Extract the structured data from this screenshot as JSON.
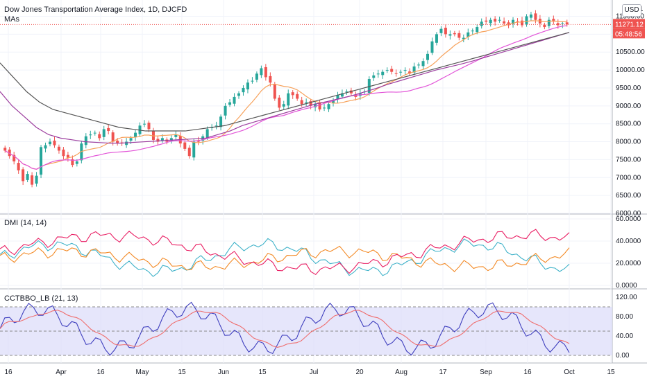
{
  "header": {
    "title": "Dow Jones Transportation Average Index, 1D, DJCFD",
    "subtitle": "MAs",
    "currency": "USD",
    "dmi_label": "DMI (14, 14)",
    "cct_label": "CCTBBO_LB (21, 13)"
  },
  "price_labels": {
    "last": "11271.12",
    "countdown": "05:48:56",
    "top_tick": "11"
  },
  "colors": {
    "up": "#26a69a",
    "down": "#ef5350",
    "ma_orange": "#f7a15a",
    "ma_pink": "#e254d8",
    "ma_purple": "#9c3d9e",
    "ma_gray": "#555555",
    "dmi_plus": "#3fb2c9",
    "dmi_minus": "#f38a26",
    "adx": "#e91e63",
    "cct": "#3f3fbe",
    "cct_signal": "#ef6e6e",
    "band": "#dcdcfa",
    "grid": "#f0f3fa"
  },
  "chart_data": [
    {
      "type": "candlestick",
      "title": "Dow Jones Transportation Average Index, 1D, DJCFD",
      "y_ticks": [
        "11500.00",
        "11000.00",
        "10500.00",
        "10000.00",
        "9500.00",
        "9000.00",
        "8500.00",
        "8000.00",
        "7500.00",
        "7000.00",
        "6500.00",
        "6000.00"
      ],
      "ylim": [
        6000,
        11800
      ],
      "x_ticks": [
        "16",
        "Apr",
        "16",
        "May",
        "15",
        "Jun",
        "15",
        "Jul",
        "20",
        "Aug",
        "17",
        "Sep",
        "16",
        "Oct",
        "15"
      ],
      "close": [
        7750,
        7600,
        7450,
        7200,
        6900,
        7100,
        6800,
        7050,
        7850,
        7900,
        8000,
        7900,
        7750,
        7600,
        7550,
        7350,
        7450,
        7950,
        8150,
        8200,
        8250,
        8100,
        8350,
        8300,
        8000,
        7950,
        7950,
        8000,
        8100,
        8250,
        8450,
        8500,
        8350,
        8050,
        8000,
        8100,
        8000,
        8100,
        8200,
        7950,
        7800,
        7600,
        8000,
        8000,
        8150,
        8350,
        8400,
        8450,
        8700,
        9000,
        9100,
        9250,
        9350,
        9500,
        9650,
        9700,
        9900,
        10050,
        9800,
        9650,
        9200,
        8950,
        9050,
        9350,
        9300,
        9200,
        9050,
        9100,
        9000,
        9050,
        8900,
        8950,
        9050,
        9150,
        9300,
        9350,
        9400,
        9350,
        9250,
        9350,
        9400,
        9750,
        9850,
        9900,
        9950,
        10000,
        9950,
        9900,
        9950,
        10000,
        9900,
        10100,
        10150,
        10250,
        10450,
        10800,
        11000,
        11150,
        11000,
        11000,
        11000,
        10900,
        10900,
        11050,
        11100,
        11200,
        11350,
        11350,
        11400,
        11350,
        11400,
        11300,
        11250,
        11400,
        11350,
        11250,
        11500,
        11550,
        11400,
        11300,
        11200,
        11400,
        11350,
        11250,
        11300,
        11271
      ],
      "ma_series": [
        {
          "values": [
            9400,
            9000,
            8700,
            8400,
            8200,
            8100,
            8050,
            8000,
            7980,
            7960,
            7960,
            7980,
            8000,
            8020,
            8040,
            8060,
            8080,
            8100,
            8200,
            8300,
            8450,
            8550,
            8650,
            8750,
            8850,
            8950,
            9050,
            9120,
            9200,
            9280,
            9380,
            9480,
            9600,
            9700,
            9800,
            9900,
            10000,
            10080,
            10160,
            10250,
            10350,
            10450,
            10550,
            10650,
            10750,
            10850,
            10950,
            11050
          ]
        },
        {
          "values": [
            10200,
            9800,
            9400,
            9100,
            8900,
            8800,
            8700,
            8600,
            8500,
            8400,
            8350,
            8300,
            8300,
            8300,
            8300,
            8350,
            8400,
            8450,
            8550,
            8650,
            8750,
            8850,
            8950,
            9050,
            9150,
            9250,
            9350,
            9450,
            9550,
            9650,
            9750,
            9850,
            9950,
            10050,
            10150,
            10250,
            10350,
            10450,
            10550,
            10650,
            10750,
            10850,
            10950,
            11050
          ]
        }
      ]
    },
    {
      "type": "line",
      "title": "DMI (14, 14)",
      "y_ticks": [
        "60.0000",
        "40.0000",
        "20.0000",
        "0.0000"
      ],
      "ylim": [
        0,
        60
      ]
    },
    {
      "type": "line",
      "title": "CCTBBO_LB (21, 13)",
      "y_ticks": [
        "120.00",
        "80.00",
        "40.00",
        "0.00"
      ],
      "ylim": [
        -10,
        130
      ],
      "band": [
        0,
        100
      ]
    }
  ]
}
